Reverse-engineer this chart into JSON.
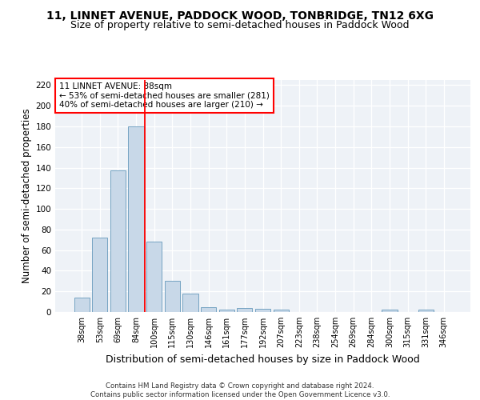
{
  "title": "11, LINNET AVENUE, PADDOCK WOOD, TONBRIDGE, TN12 6XG",
  "subtitle": "Size of property relative to semi-detached houses in Paddock Wood",
  "xlabel": "Distribution of semi-detached houses by size in Paddock Wood",
  "ylabel": "Number of semi-detached properties",
  "categories": [
    "38sqm",
    "53sqm",
    "69sqm",
    "84sqm",
    "100sqm",
    "115sqm",
    "130sqm",
    "146sqm",
    "161sqm",
    "177sqm",
    "192sqm",
    "207sqm",
    "223sqm",
    "238sqm",
    "254sqm",
    "269sqm",
    "284sqm",
    "300sqm",
    "315sqm",
    "331sqm",
    "346sqm"
  ],
  "values": [
    14,
    72,
    137,
    180,
    68,
    30,
    18,
    5,
    2,
    4,
    3,
    2,
    0,
    0,
    0,
    0,
    0,
    2,
    0,
    2,
    0
  ],
  "bar_color": "#c8d8e8",
  "bar_edge_color": "#6699bb",
  "vline_x": 3.5,
  "vline_color": "red",
  "annotation_text": "11 LINNET AVENUE: 88sqm\n← 53% of semi-detached houses are smaller (281)\n40% of semi-detached houses are larger (210) →",
  "annotation_box_color": "white",
  "annotation_box_edge_color": "red",
  "ylim": [
    0,
    225
  ],
  "yticks": [
    0,
    20,
    40,
    60,
    80,
    100,
    120,
    140,
    160,
    180,
    200,
    220
  ],
  "background_color": "#eef2f7",
  "footer_text": "Contains HM Land Registry data © Crown copyright and database right 2024.\nContains public sector information licensed under the Open Government Licence v3.0.",
  "title_fontsize": 10,
  "subtitle_fontsize": 9,
  "xlabel_fontsize": 9,
  "ylabel_fontsize": 8.5,
  "annotation_fontsize": 7.5,
  "footer_fontsize": 6.2,
  "tick_fontsize": 7,
  "ytick_fontsize": 7.5
}
